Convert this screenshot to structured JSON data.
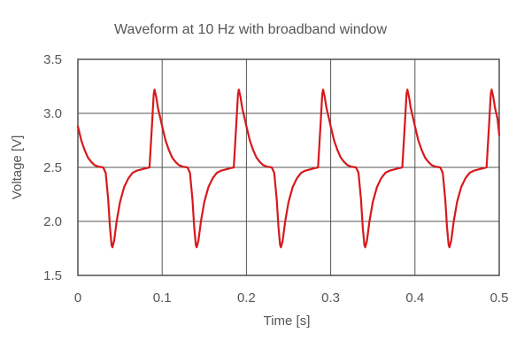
{
  "chart_data": {
    "type": "line",
    "title": "Waveform at 10 Hz with broadband window",
    "xlabel": "Time [s]",
    "ylabel": "Voltage [V]",
    "xlim": [
      0,
      0.5
    ],
    "ylim": [
      1.5,
      3.5
    ],
    "x_ticks": [
      0,
      0.1,
      0.2,
      0.3,
      0.4,
      0.5
    ],
    "x_tick_labels": [
      "0",
      "0.1",
      "0.2",
      "0.3",
      "0.4",
      "0.5"
    ],
    "y_ticks": [
      1.5,
      2.0,
      2.5,
      3.0,
      3.5
    ],
    "y_tick_labels": [
      "1.5",
      "2.0",
      "2.5",
      "3.0",
      "3.5"
    ],
    "grid": true,
    "series": [
      {
        "color": "#d7191c",
        "x": [
          0,
          0.004,
          0.008,
          0.012,
          0.016,
          0.02,
          0.025,
          0.03,
          0.033,
          0.036,
          0.038,
          0.04,
          0.041,
          0.043,
          0.046,
          0.05,
          0.055,
          0.06,
          0.065,
          0.07,
          0.075,
          0.08,
          0.085,
          0.088,
          0.09,
          0.091,
          0.093,
          0.095,
          0.098,
          0.1,
          0.104,
          0.108,
          0.112,
          0.116,
          0.12,
          0.125,
          0.13,
          0.133,
          0.136,
          0.138,
          0.14,
          0.141,
          0.143,
          0.146,
          0.15,
          0.155,
          0.16,
          0.165,
          0.17,
          0.175,
          0.18,
          0.185,
          0.188,
          0.19,
          0.191,
          0.193,
          0.195,
          0.198,
          0.2,
          0.204,
          0.208,
          0.212,
          0.216,
          0.22,
          0.225,
          0.23,
          0.233,
          0.236,
          0.238,
          0.24,
          0.241,
          0.243,
          0.246,
          0.25,
          0.255,
          0.26,
          0.265,
          0.27,
          0.275,
          0.28,
          0.285,
          0.288,
          0.29,
          0.291,
          0.293,
          0.295,
          0.298,
          0.3,
          0.304,
          0.308,
          0.312,
          0.316,
          0.32,
          0.325,
          0.33,
          0.333,
          0.336,
          0.338,
          0.34,
          0.341,
          0.343,
          0.346,
          0.35,
          0.355,
          0.36,
          0.365,
          0.37,
          0.375,
          0.38,
          0.385,
          0.388,
          0.39,
          0.391,
          0.393,
          0.395,
          0.398,
          0.4,
          0.404,
          0.408,
          0.412,
          0.416,
          0.42,
          0.425,
          0.43,
          0.433,
          0.436,
          0.438,
          0.44,
          0.441,
          0.443,
          0.446,
          0.45,
          0.455,
          0.46,
          0.465,
          0.47,
          0.475,
          0.48,
          0.485,
          0.488,
          0.49,
          0.491,
          0.493,
          0.495,
          0.498,
          0.5
        ],
        "y": [
          2.88,
          2.75,
          2.66,
          2.59,
          2.55,
          2.52,
          2.505,
          2.5,
          2.45,
          2.2,
          1.95,
          1.78,
          1.76,
          1.82,
          2.0,
          2.18,
          2.32,
          2.4,
          2.45,
          2.47,
          2.48,
          2.49,
          2.5,
          2.9,
          3.18,
          3.22,
          3.15,
          3.05,
          2.95,
          2.88,
          2.75,
          2.66,
          2.59,
          2.55,
          2.52,
          2.505,
          2.5,
          2.45,
          2.2,
          1.95,
          1.78,
          1.76,
          1.82,
          2.0,
          2.18,
          2.32,
          2.4,
          2.45,
          2.47,
          2.48,
          2.49,
          2.5,
          2.9,
          3.18,
          3.22,
          3.15,
          3.05,
          2.95,
          2.88,
          2.75,
          2.66,
          2.59,
          2.55,
          2.52,
          2.505,
          2.5,
          2.45,
          2.2,
          1.95,
          1.78,
          1.76,
          1.82,
          2.0,
          2.18,
          2.32,
          2.4,
          2.45,
          2.47,
          2.48,
          2.49,
          2.5,
          2.9,
          3.18,
          3.22,
          3.15,
          3.05,
          2.95,
          2.88,
          2.75,
          2.66,
          2.59,
          2.55,
          2.52,
          2.505,
          2.5,
          2.45,
          2.2,
          1.95,
          1.78,
          1.76,
          1.82,
          2.0,
          2.18,
          2.32,
          2.4,
          2.45,
          2.47,
          2.48,
          2.49,
          2.5,
          2.9,
          3.18,
          3.22,
          3.15,
          3.05,
          2.95,
          2.88,
          2.75,
          2.66,
          2.59,
          2.55,
          2.52,
          2.505,
          2.5,
          2.45,
          2.2,
          1.95,
          1.78,
          1.76,
          1.82,
          2.0,
          2.18,
          2.32,
          2.4,
          2.45,
          2.47,
          2.48,
          2.49,
          2.5,
          2.9,
          3.18,
          3.22,
          3.15,
          3.05,
          2.95,
          2.8
        ]
      }
    ]
  }
}
